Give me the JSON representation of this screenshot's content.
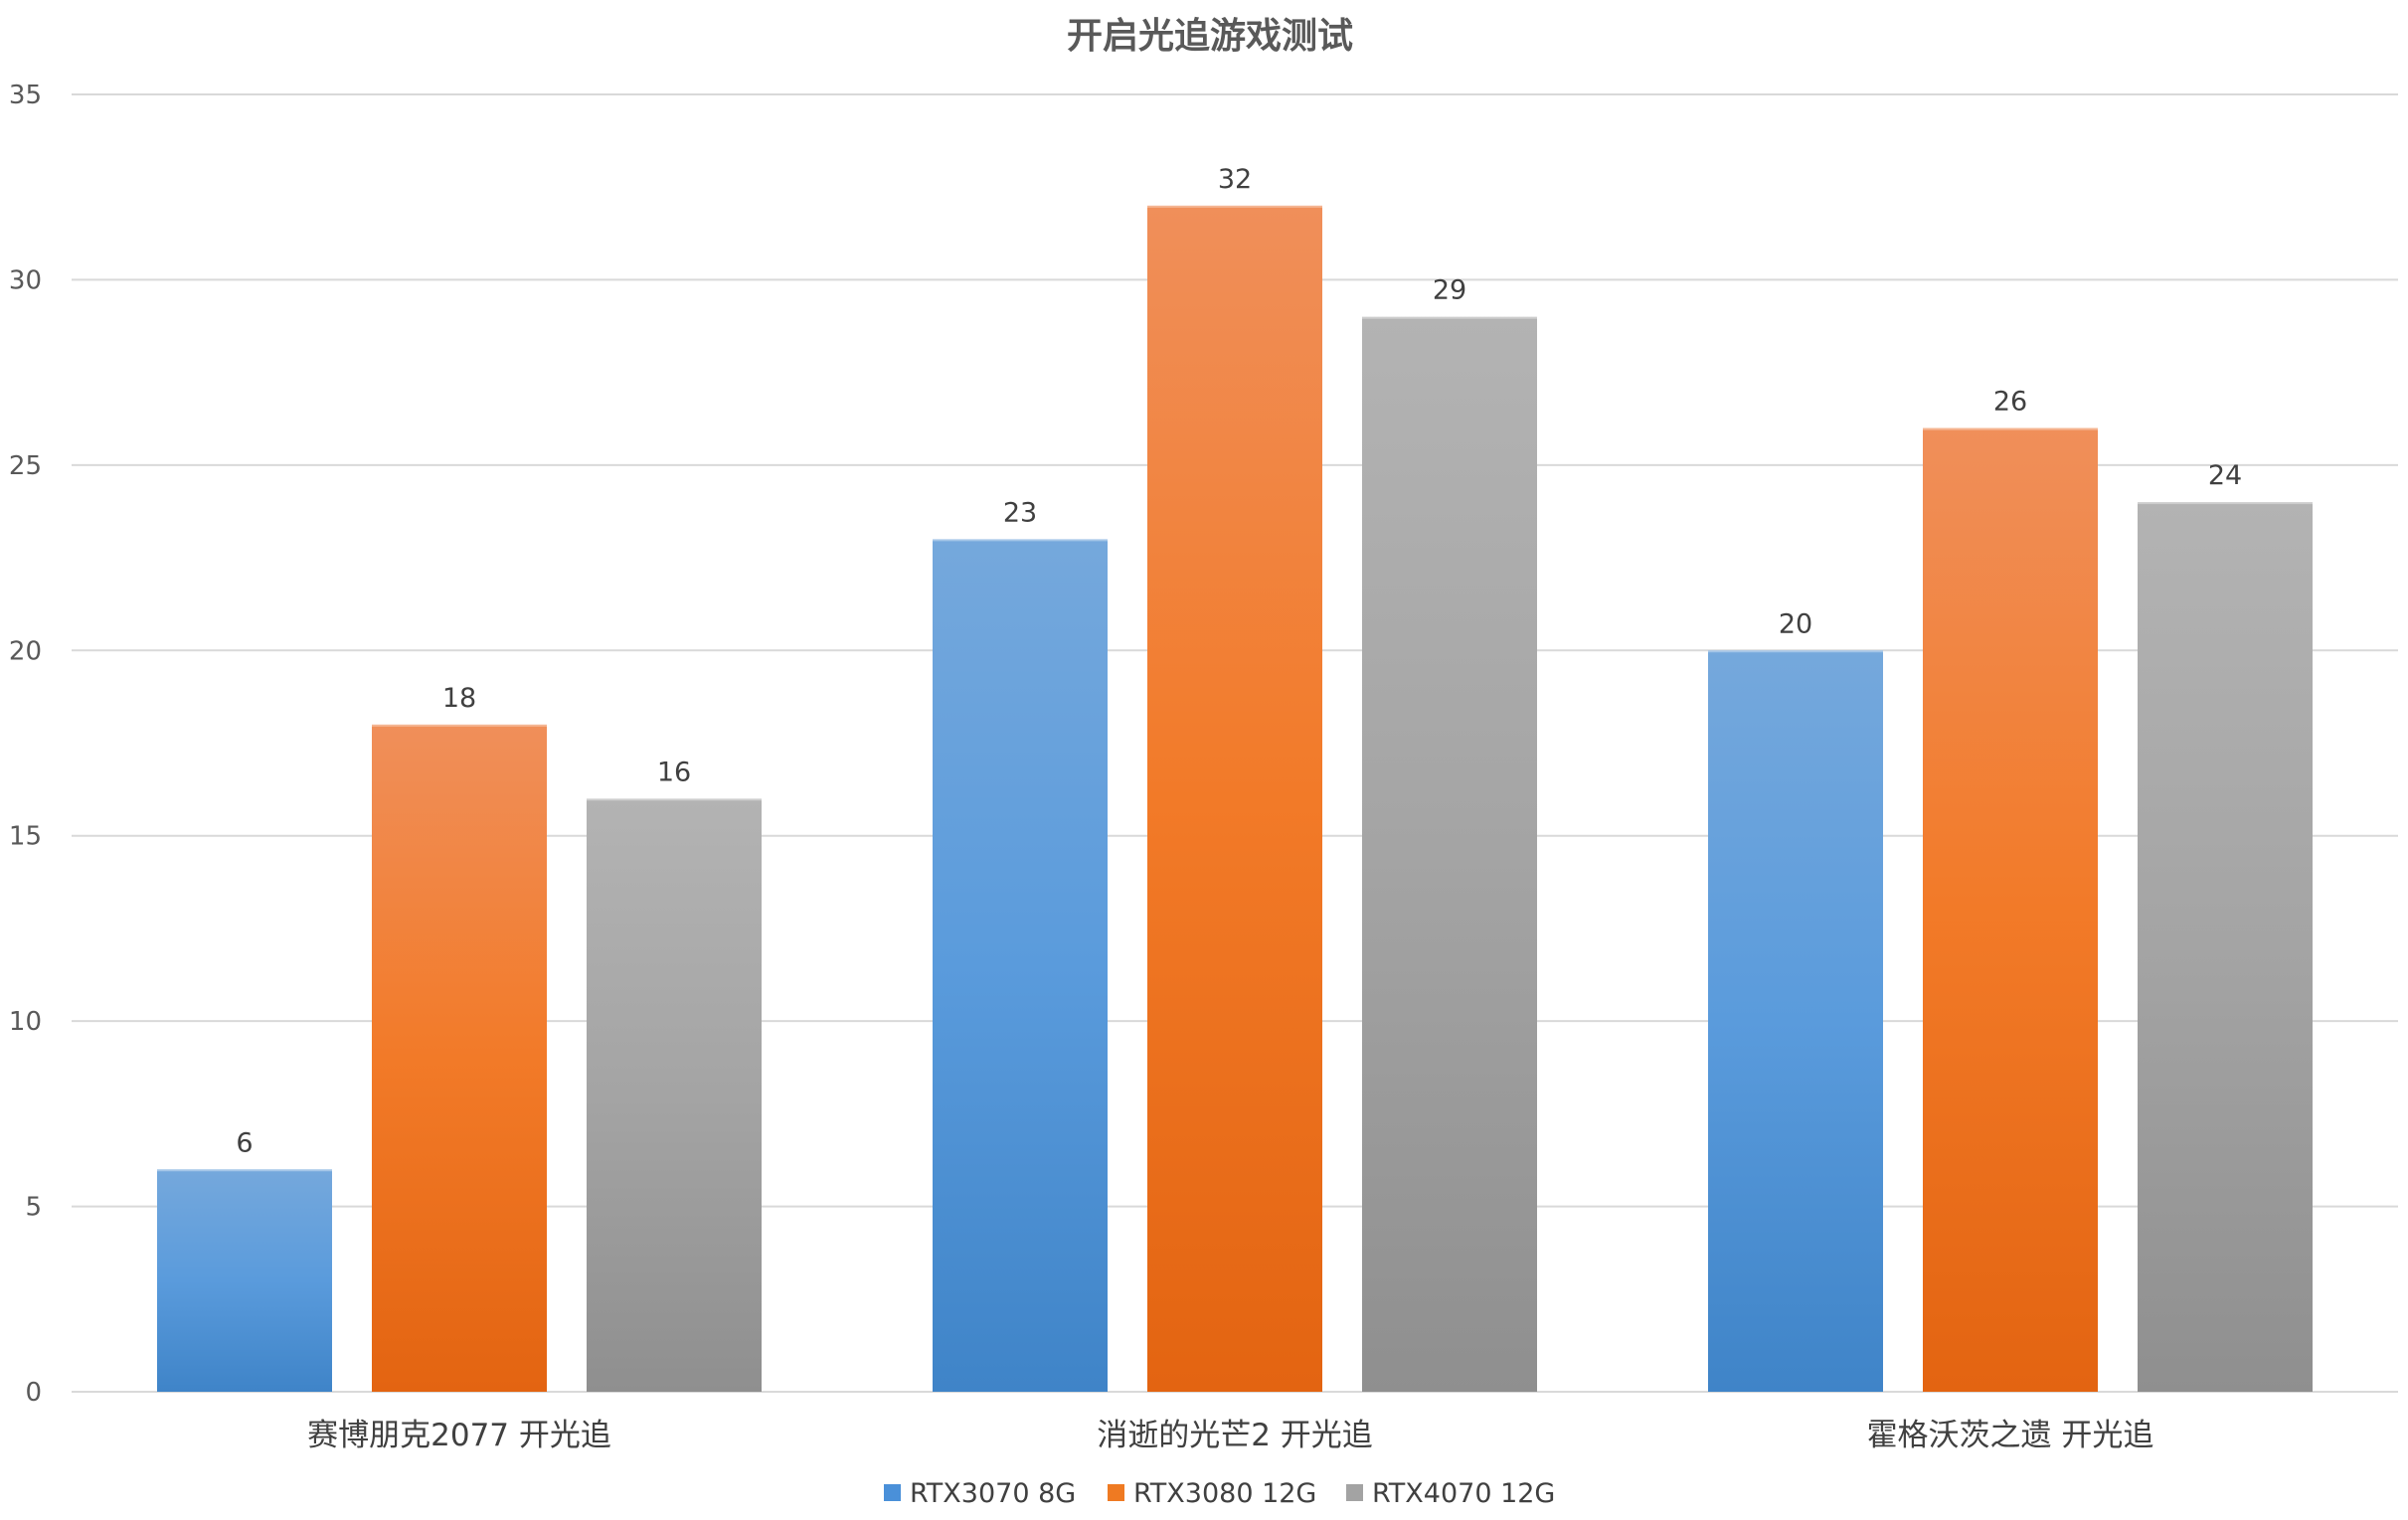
{
  "chart_data": {
    "type": "bar",
    "title": "开启光追游戏测试",
    "categories": [
      "赛博朋克2077 开光追",
      "消逝的光芒2 开光追",
      "霍格沃茨之遗 开光追"
    ],
    "series": [
      {
        "name": "RTX3070 8G",
        "values": [
          6,
          23,
          20
        ],
        "color": "#4a90d9"
      },
      {
        "name": "RTX3080 12G",
        "values": [
          18,
          32,
          26
        ],
        "color": "#ef7a22"
      },
      {
        "name": "RTX4070 12G",
        "values": [
          16,
          29,
          24
        ],
        "color": "#a3a3a3"
      }
    ],
    "ylim": [
      0,
      35
    ],
    "yticks": [
      0,
      5,
      10,
      15,
      20,
      25,
      30,
      35
    ],
    "grid": true,
    "legend": "bottom",
    "data_labels": true
  }
}
